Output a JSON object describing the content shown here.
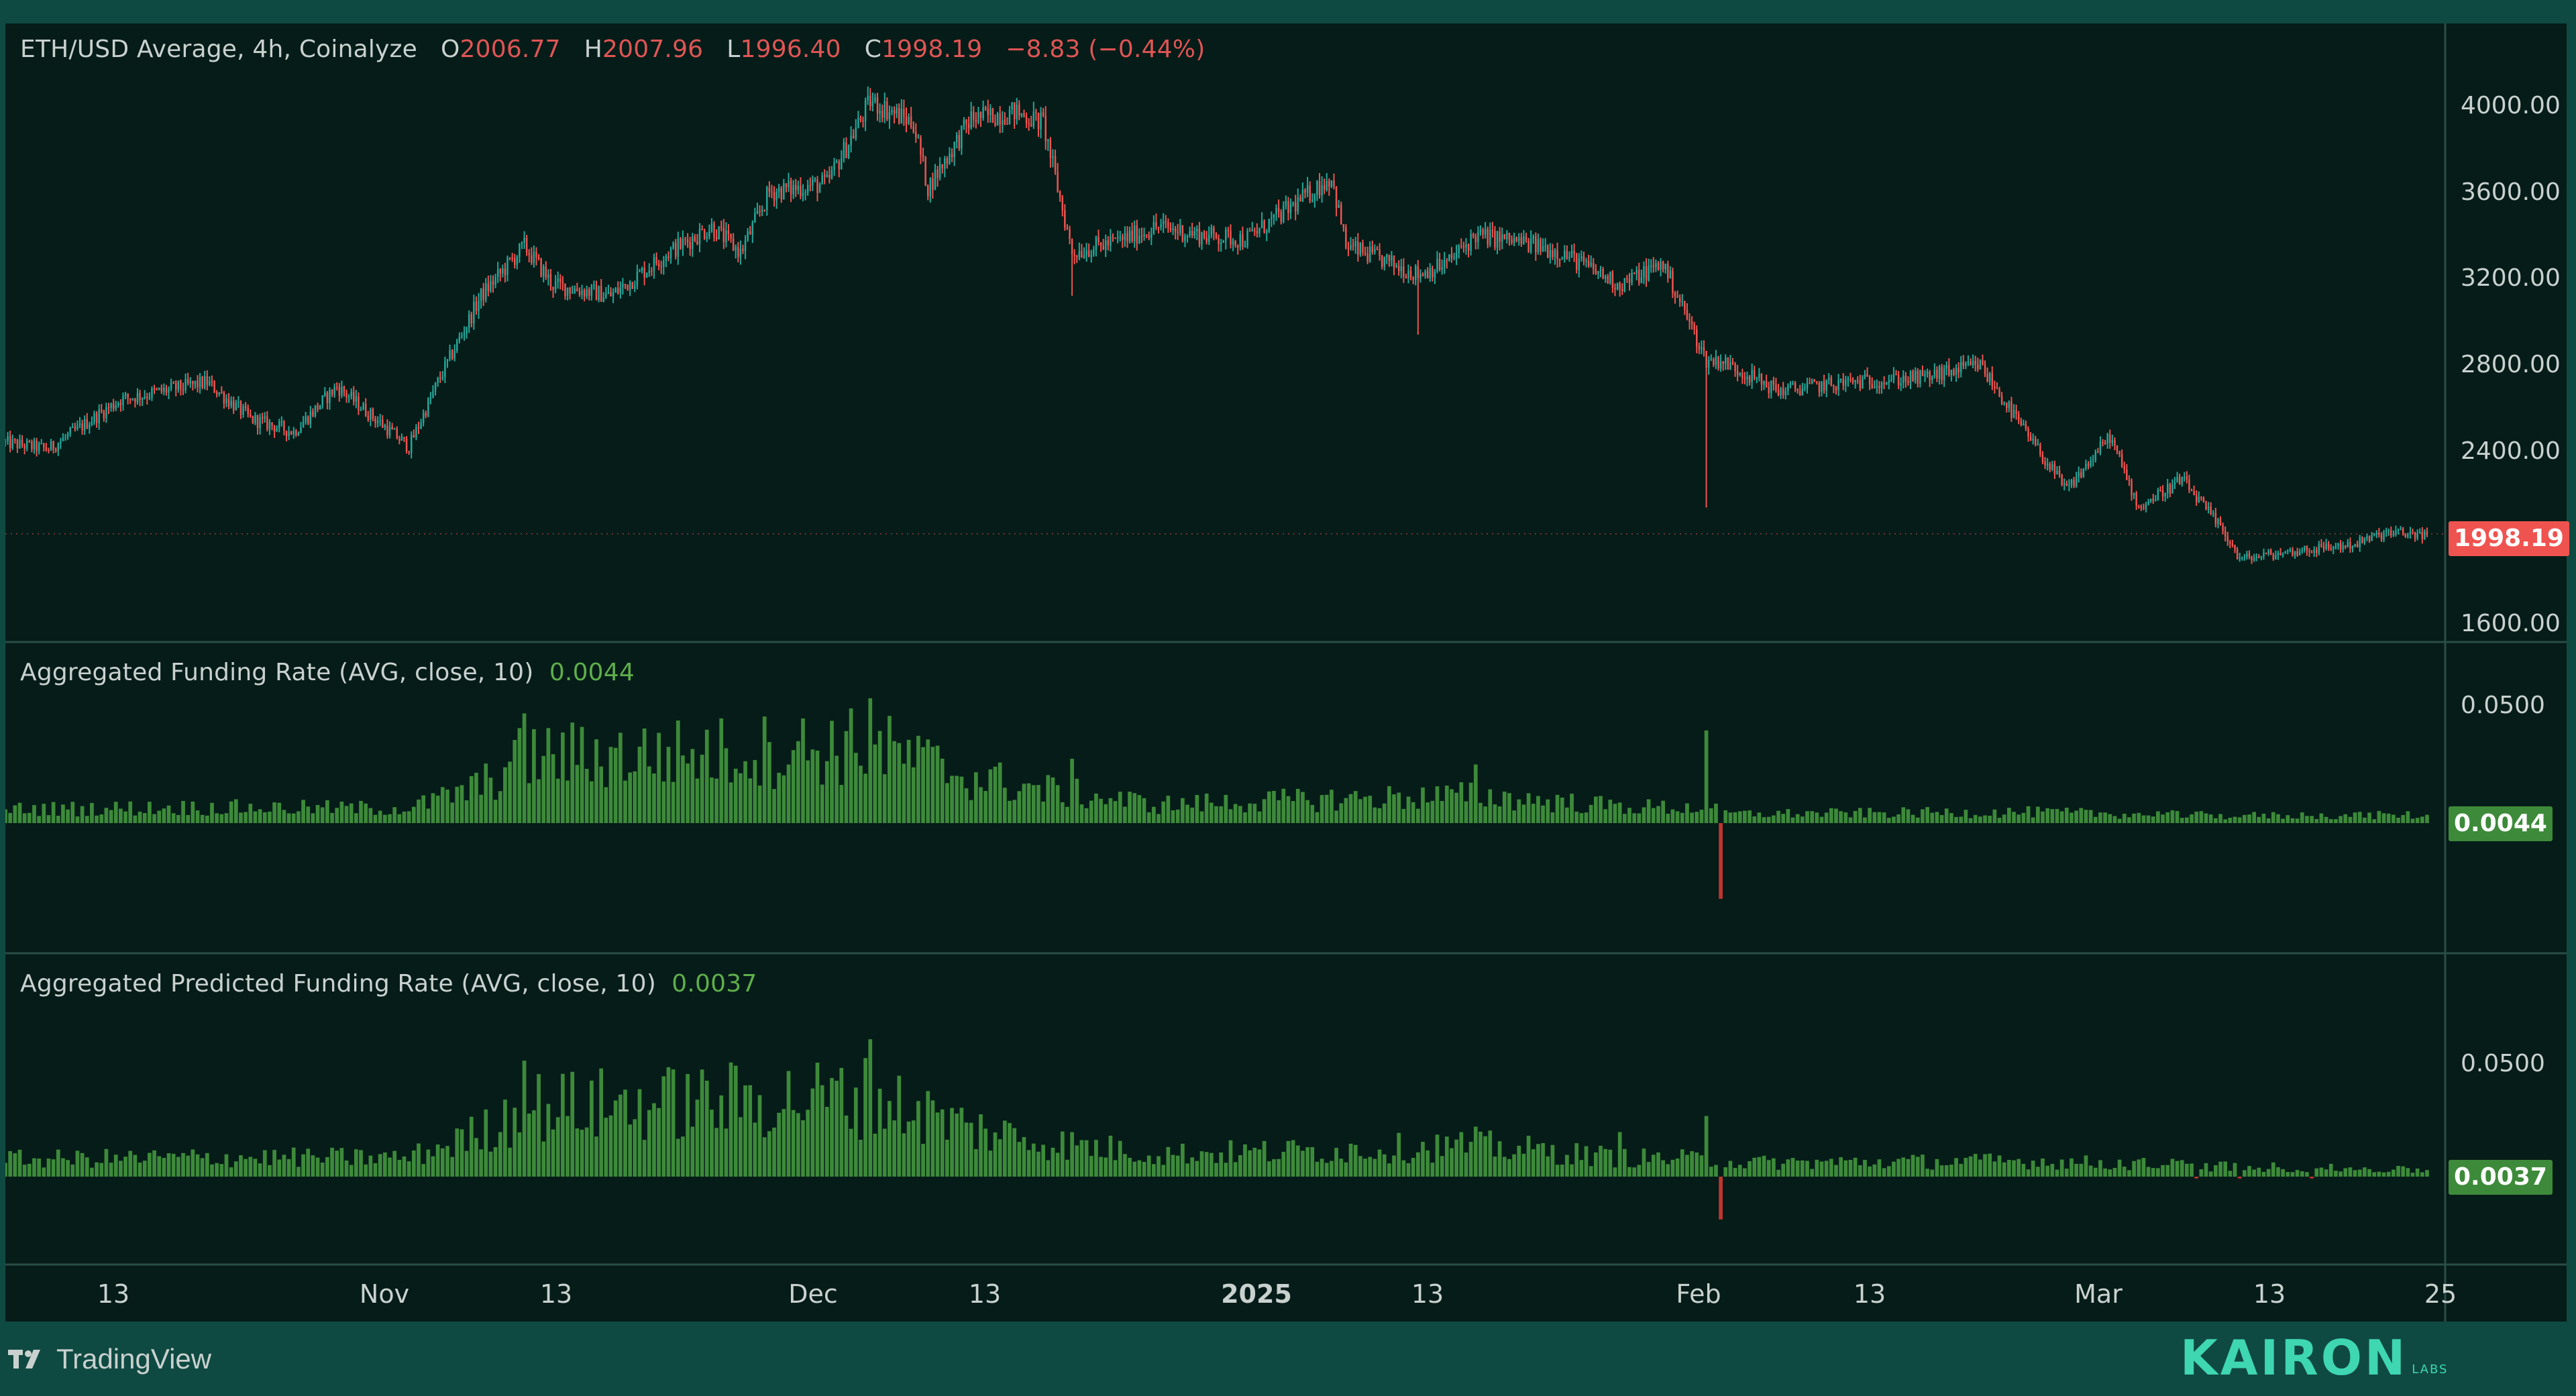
{
  "colors": {
    "up": "#26a69a",
    "down": "#ef5350",
    "funding_pos": "#3d8a3a",
    "funding_neg": "#c2352f",
    "background": "#051c18",
    "frame": "#0f4a42",
    "kairon": "#3fd6b2"
  },
  "price_legend": {
    "title": "ETH/USD Average, 4h, Coinalyze",
    "o_label": "O",
    "o_value": "2006.77",
    "h_label": "H",
    "h_value": "2007.96",
    "l_label": "L",
    "l_value": "1996.40",
    "c_label": "C",
    "c_value": "1998.19",
    "change": "−8.83 (−0.44%)"
  },
  "funding_legend": {
    "title": "Aggregated Funding Rate (AVG, close, 10)",
    "value": "0.0044"
  },
  "predicted_legend": {
    "title": "Aggregated Predicted Funding Rate (AVG, close, 10)",
    "value": "0.0037"
  },
  "price_axis": {
    "ticks": [
      "4000.00",
      "3600.00",
      "3200.00",
      "2800.00",
      "2400.00",
      "1600.00"
    ],
    "current": "1998.19"
  },
  "funding_axis": {
    "ticks": [
      "0.0500"
    ],
    "current": "0.0044"
  },
  "predicted_axis": {
    "ticks": [
      "0.0500"
    ],
    "current": "0.0037"
  },
  "time_axis": {
    "labels": [
      "13",
      "Nov",
      "13",
      "Dec",
      "13",
      "2025",
      "13",
      "Feb",
      "13",
      "Mar",
      "13",
      "25"
    ]
  },
  "footer": {
    "tradingview": "TradingView",
    "kairon": "KAIRON",
    "kairon_sub": "LABS",
    "tv_icon": "tradingview-logo-icon"
  },
  "chart_data": [
    {
      "type": "candlestick",
      "title": "ETH/USD Average, 4h, Coinalyze",
      "timeframe": "4h",
      "date_range": [
        "2024-10-07",
        "2025-03-24"
      ],
      "ylim": [
        1600,
        4200
      ],
      "anchors": [
        {
          "date": "2024-10-07",
          "price": 2420
        },
        {
          "date": "2024-10-10",
          "price": 2390
        },
        {
          "date": "2024-10-15",
          "price": 2620
        },
        {
          "date": "2024-10-21",
          "price": 2700
        },
        {
          "date": "2024-10-24",
          "price": 2530
        },
        {
          "date": "2024-10-27",
          "price": 2470
        },
        {
          "date": "2024-10-30",
          "price": 2680
        },
        {
          "date": "2024-11-04",
          "price": 2400
        },
        {
          "date": "2024-11-06",
          "price": 2700
        },
        {
          "date": "2024-11-09",
          "price": 3100
        },
        {
          "date": "2024-11-12",
          "price": 3330
        },
        {
          "date": "2024-11-14",
          "price": 3150
        },
        {
          "date": "2024-11-18",
          "price": 3100
        },
        {
          "date": "2024-11-22",
          "price": 3300
        },
        {
          "date": "2024-11-25",
          "price": 3420
        },
        {
          "date": "2024-11-27",
          "price": 3300
        },
        {
          "date": "2024-11-29",
          "price": 3580
        },
        {
          "date": "2024-12-03",
          "price": 3620
        },
        {
          "date": "2024-12-06",
          "price": 4000
        },
        {
          "date": "2024-12-09",
          "price": 3900
        },
        {
          "date": "2024-12-10",
          "price": 3600
        },
        {
          "date": "2024-12-13",
          "price": 3920
        },
        {
          "date": "2024-12-16",
          "price": 3950
        },
        {
          "date": "2024-12-18",
          "price": 3900
        },
        {
          "date": "2024-12-20",
          "price": 3300
        },
        {
          "date": "2024-12-23",
          "price": 3350
        },
        {
          "date": "2024-12-26",
          "price": 3420
        },
        {
          "date": "2024-12-29",
          "price": 3380
        },
        {
          "date": "2025-01-01",
          "price": 3360
        },
        {
          "date": "2025-01-04",
          "price": 3500
        },
        {
          "date": "2025-01-07",
          "price": 3650
        },
        {
          "date": "2025-01-08",
          "price": 3330
        },
        {
          "date": "2025-01-13",
          "price": 3200
        },
        {
          "date": "2025-01-15",
          "price": 3250
        },
        {
          "date": "2025-01-17",
          "price": 3380
        },
        {
          "date": "2025-01-20",
          "price": 3350
        },
        {
          "date": "2025-01-23",
          "price": 3300
        },
        {
          "date": "2025-01-27",
          "price": 3150
        },
        {
          "date": "2025-01-30",
          "price": 3250
        },
        {
          "date": "2025-02-02",
          "price": 2800
        },
        {
          "date": "2025-02-03",
          "price": 2800
        },
        {
          "date": "2025-02-07",
          "price": 2660
        },
        {
          "date": "2025-02-12",
          "price": 2700
        },
        {
          "date": "2025-02-17",
          "price": 2720
        },
        {
          "date": "2025-02-21",
          "price": 2780
        },
        {
          "date": "2025-02-24",
          "price": 2480
        },
        {
          "date": "2025-02-27",
          "price": 2200
        },
        {
          "date": "2025-03-02",
          "price": 2450
        },
        {
          "date": "2025-03-04",
          "price": 2120
        },
        {
          "date": "2025-03-07",
          "price": 2250
        },
        {
          "date": "2025-03-10",
          "price": 2000
        },
        {
          "date": "2025-03-11",
          "price": 1880
        },
        {
          "date": "2025-03-15",
          "price": 1920
        },
        {
          "date": "2025-03-19",
          "price": 1950
        },
        {
          "date": "2025-03-21",
          "price": 2000
        },
        {
          "date": "2025-03-24",
          "price": 1998.19
        }
      ],
      "spikes": [
        {
          "date": "2025-02-02",
          "low": 2120
        },
        {
          "date": "2024-12-20",
          "low": 3100
        },
        {
          "date": "2025-01-13",
          "low": 2920
        }
      ],
      "last": {
        "open": 2006.77,
        "high": 2007.96,
        "low": 1996.4,
        "close": 1998.19,
        "change": -8.83,
        "change_pct": -0.44
      }
    },
    {
      "type": "bar",
      "title": "Aggregated Funding Rate (AVG, close, 10)",
      "ylim": [
        -0.04,
        0.07
      ],
      "last": 0.0044,
      "profile": [
        {
          "date": "2024-10-07",
          "value": 0.0075
        },
        {
          "date": "2024-10-21",
          "value": 0.0085
        },
        {
          "date": "2024-11-04",
          "value": 0.008
        },
        {
          "date": "2024-11-09",
          "value": 0.02
        },
        {
          "date": "2024-11-12",
          "value": 0.036
        },
        {
          "date": "2024-11-25",
          "value": 0.038
        },
        {
          "date": "2024-12-06",
          "value": 0.042
        },
        {
          "date": "2024-12-13",
          "value": 0.025
        },
        {
          "date": "2024-12-18",
          "value": 0.018
        },
        {
          "date": "2024-12-26",
          "value": 0.01
        },
        {
          "date": "2025-01-07",
          "value": 0.013
        },
        {
          "date": "2025-01-17",
          "value": 0.015
        },
        {
          "date": "2025-01-27",
          "value": 0.009
        },
        {
          "date": "2025-02-02",
          "value": 0.008
        },
        {
          "date": "2025-02-04",
          "value": 0.005
        },
        {
          "date": "2025-02-24",
          "value": 0.006
        },
        {
          "date": "2025-03-10",
          "value": 0.004
        },
        {
          "date": "2025-03-24",
          "value": 0.0044
        }
      ],
      "spikes": [
        {
          "date": "2024-11-12",
          "value": 0.058
        },
        {
          "date": "2024-12-06",
          "value": 0.066
        },
        {
          "date": "2025-02-02",
          "value": 0.049
        },
        {
          "date": "2025-02-03",
          "value": -0.04
        },
        {
          "date": "2025-01-17",
          "value": 0.031
        },
        {
          "date": "2024-12-20",
          "value": 0.034
        }
      ]
    },
    {
      "type": "bar",
      "title": "Aggregated Predicted Funding Rate (AVG, close, 10)",
      "ylim": [
        -0.03,
        0.08
      ],
      "last": 0.0037,
      "profile": [
        {
          "date": "2024-10-07",
          "value": 0.01
        },
        {
          "date": "2024-10-21",
          "value": 0.011
        },
        {
          "date": "2024-11-04",
          "value": 0.011
        },
        {
          "date": "2024-11-09",
          "value": 0.025
        },
        {
          "date": "2024-11-12",
          "value": 0.04
        },
        {
          "date": "2024-11-25",
          "value": 0.043
        },
        {
          "date": "2024-12-06",
          "value": 0.046
        },
        {
          "date": "2024-12-13",
          "value": 0.028
        },
        {
          "date": "2024-12-18",
          "value": 0.02
        },
        {
          "date": "2024-12-26",
          "value": 0.013
        },
        {
          "date": "2025-01-07",
          "value": 0.015
        },
        {
          "date": "2025-01-17",
          "value": 0.018
        },
        {
          "date": "2025-01-27",
          "value": 0.011
        },
        {
          "date": "2025-02-02",
          "value": 0.01
        },
        {
          "date": "2025-02-04",
          "value": 0.008
        },
        {
          "date": "2025-02-24",
          "value": 0.009
        },
        {
          "date": "2025-03-10",
          "value": 0.006
        },
        {
          "date": "2025-03-24",
          "value": 0.0037
        }
      ],
      "spikes": [
        {
          "date": "2024-11-12",
          "value": 0.065
        },
        {
          "date": "2024-12-06",
          "value": 0.077
        },
        {
          "date": "2025-02-02",
          "value": 0.034
        },
        {
          "date": "2025-02-03",
          "value": -0.024
        },
        {
          "date": "2025-01-27",
          "value": 0.025
        },
        {
          "date": "2025-01-17",
          "value": 0.028
        }
      ]
    }
  ]
}
